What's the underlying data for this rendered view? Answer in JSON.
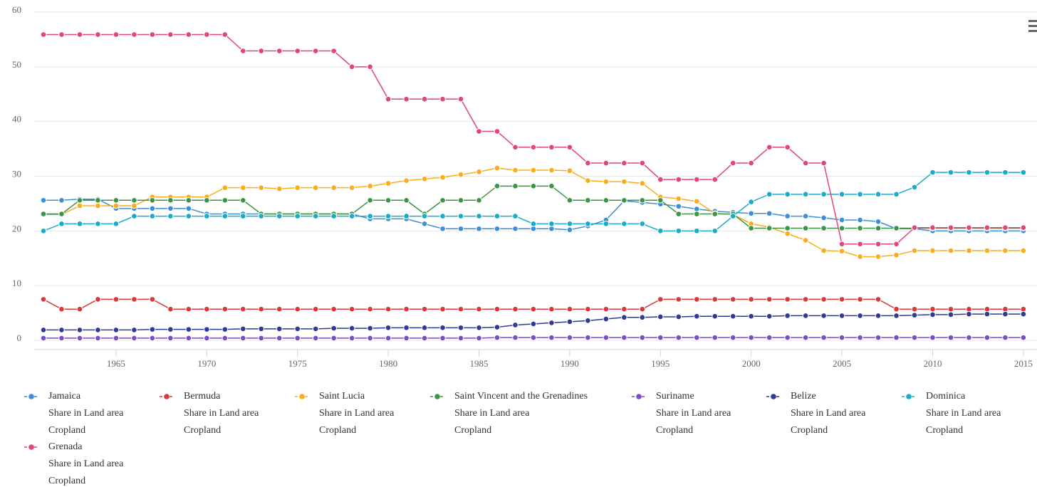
{
  "chart_data": {
    "type": "line",
    "x": [
      1961,
      1962,
      1963,
      1964,
      1965,
      1966,
      1967,
      1968,
      1969,
      1970,
      1971,
      1972,
      1973,
      1974,
      1975,
      1976,
      1977,
      1978,
      1979,
      1980,
      1981,
      1982,
      1983,
      1984,
      1985,
      1986,
      1987,
      1988,
      1989,
      1990,
      1991,
      1992,
      1993,
      1994,
      1995,
      1996,
      1997,
      1998,
      1999,
      2000,
      2001,
      2002,
      2003,
      2004,
      2005,
      2006,
      2007,
      2008,
      2009,
      2010,
      2011,
      2012,
      2013,
      2014,
      2015
    ],
    "xlim": [
      1961,
      2015.75
    ],
    "xticks": [
      1965,
      1970,
      1975,
      1980,
      1985,
      1990,
      1995,
      2000,
      2005,
      2010,
      2015
    ],
    "ylim": [
      0,
      60
    ],
    "yticks": [
      0,
      10,
      20,
      30,
      40,
      50,
      60
    ],
    "grid": true,
    "series": [
      {
        "name": "Jamaica",
        "element": "Share in Land area",
        "item": "Cropland",
        "color": "#3a8fd9",
        "values": [
          25.6,
          25.6,
          25.8,
          25.8,
          24.1,
          24.1,
          24.1,
          24.1,
          24.1,
          23.1,
          23.1,
          23.1,
          23.1,
          23.1,
          23.1,
          23.1,
          23.1,
          23.1,
          22.2,
          22.2,
          22.2,
          21.3,
          20.4,
          20.4,
          20.4,
          20.4,
          20.4,
          20.4,
          20.4,
          20.2,
          20.9,
          22.0,
          25.5,
          25.2,
          24.9,
          24.5,
          24.0,
          23.6,
          23.4,
          23.2,
          23.2,
          22.7,
          22.7,
          22.4,
          22.0,
          22.0,
          21.7,
          20.4,
          20.4,
          20.0,
          20.0,
          20.0,
          20.0,
          20.0,
          20.0
        ]
      },
      {
        "name": "Bermuda",
        "element": "Share in Land area",
        "item": "Cropland",
        "color": "#d9383a",
        "values": [
          7.5,
          5.7,
          5.7,
          7.5,
          7.5,
          7.5,
          7.5,
          5.7,
          5.7,
          5.7,
          5.7,
          5.7,
          5.7,
          5.7,
          5.7,
          5.7,
          5.7,
          5.7,
          5.7,
          5.7,
          5.7,
          5.7,
          5.7,
          5.7,
          5.7,
          5.7,
          5.7,
          5.7,
          5.7,
          5.7,
          5.7,
          5.7,
          5.7,
          5.7,
          7.5,
          7.5,
          7.5,
          7.5,
          7.5,
          7.5,
          7.5,
          7.5,
          7.5,
          7.5,
          7.5,
          7.5,
          7.5,
          5.7,
          5.7,
          5.7,
          5.7,
          5.7,
          5.7,
          5.7,
          5.7
        ]
      },
      {
        "name": "Saint Lucia",
        "element": "Share in Land area",
        "item": "Cropland",
        "color": "#fbab1c",
        "values": [
          23.0,
          23.0,
          24.6,
          24.6,
          24.6,
          24.6,
          26.2,
          26.2,
          26.2,
          26.2,
          27.9,
          27.9,
          27.9,
          27.7,
          27.9,
          27.9,
          27.9,
          27.9,
          28.2,
          28.7,
          29.2,
          29.5,
          29.8,
          30.3,
          30.8,
          31.5,
          31.1,
          31.1,
          31.1,
          31.0,
          29.2,
          29.0,
          29.0,
          28.7,
          26.2,
          25.9,
          25.4,
          23.2,
          23.0,
          21.3,
          20.7,
          19.5,
          18.3,
          16.4,
          16.3,
          15.3,
          15.3,
          15.6,
          16.4,
          16.4,
          16.4,
          16.4,
          16.4,
          16.4,
          16.4
        ]
      },
      {
        "name": "Saint Vincent and the Grenadines",
        "element": "Share in Land area",
        "item": "Cropland",
        "color": "#3c9445",
        "values": [
          23.1,
          23.1,
          25.6,
          25.6,
          25.6,
          25.6,
          25.6,
          25.6,
          25.6,
          25.6,
          25.6,
          25.6,
          23.1,
          23.1,
          23.1,
          23.1,
          23.1,
          23.1,
          25.6,
          25.6,
          25.6,
          23.1,
          25.6,
          25.6,
          25.6,
          28.2,
          28.2,
          28.2,
          28.2,
          25.6,
          25.6,
          25.6,
          25.6,
          25.6,
          25.6,
          23.1,
          23.1,
          23.1,
          23.1,
          20.5,
          20.5,
          20.5,
          20.5,
          20.5,
          20.5,
          20.5,
          20.5,
          20.5,
          20.5,
          20.5,
          20.5,
          20.5,
          20.5,
          20.5,
          20.5
        ]
      },
      {
        "name": "Suriname",
        "element": "Share in Land area",
        "item": "Cropland",
        "color": "#7d4bc4",
        "values": [
          0.4,
          0.4,
          0.4,
          0.4,
          0.4,
          0.4,
          0.4,
          0.4,
          0.4,
          0.4,
          0.4,
          0.4,
          0.4,
          0.4,
          0.4,
          0.4,
          0.4,
          0.4,
          0.4,
          0.4,
          0.4,
          0.4,
          0.4,
          0.4,
          0.4,
          0.5,
          0.5,
          0.5,
          0.5,
          0.5,
          0.5,
          0.5,
          0.5,
          0.5,
          0.5,
          0.5,
          0.5,
          0.5,
          0.5,
          0.5,
          0.5,
          0.5,
          0.5,
          0.5,
          0.5,
          0.5,
          0.5,
          0.5,
          0.5,
          0.5,
          0.5,
          0.5,
          0.5,
          0.5,
          0.5
        ]
      },
      {
        "name": "Belize",
        "element": "Share in Land area",
        "item": "Cropland",
        "color": "#2e3a94",
        "values": [
          1.9,
          1.9,
          1.9,
          1.9,
          1.9,
          1.9,
          2.0,
          2.0,
          2.0,
          2.0,
          2.0,
          2.1,
          2.1,
          2.1,
          2.1,
          2.1,
          2.2,
          2.2,
          2.2,
          2.3,
          2.3,
          2.3,
          2.3,
          2.3,
          2.3,
          2.4,
          2.8,
          3.0,
          3.2,
          3.4,
          3.6,
          3.9,
          4.2,
          4.2,
          4.3,
          4.3,
          4.4,
          4.4,
          4.4,
          4.4,
          4.4,
          4.5,
          4.5,
          4.5,
          4.5,
          4.5,
          4.5,
          4.5,
          4.6,
          4.7,
          4.7,
          4.8,
          4.8,
          4.8,
          4.8
        ]
      },
      {
        "name": "Dominica",
        "element": "Share in Land area",
        "item": "Cropland",
        "color": "#1aabc9",
        "values": [
          20.0,
          21.3,
          21.3,
          21.3,
          21.3,
          22.7,
          22.7,
          22.7,
          22.7,
          22.7,
          22.7,
          22.7,
          22.7,
          22.7,
          22.7,
          22.7,
          22.7,
          22.7,
          22.7,
          22.7,
          22.7,
          22.7,
          22.7,
          22.7,
          22.7,
          22.7,
          22.7,
          21.3,
          21.3,
          21.3,
          21.3,
          21.3,
          21.3,
          21.3,
          20.0,
          20.0,
          20.0,
          20.0,
          22.7,
          25.3,
          26.7,
          26.7,
          26.7,
          26.7,
          26.7,
          26.7,
          26.7,
          26.7,
          28.0,
          30.7,
          30.7,
          30.7,
          30.7,
          30.7,
          30.7
        ]
      },
      {
        "name": "Grenada",
        "element": "Share in Land area",
        "item": "Cropland",
        "color": "#e0457b",
        "values": [
          55.9,
          55.9,
          55.9,
          55.9,
          55.9,
          55.9,
          55.9,
          55.9,
          55.9,
          55.9,
          55.9,
          52.9,
          52.9,
          52.9,
          52.9,
          52.9,
          52.9,
          50.0,
          50.0,
          44.1,
          44.1,
          44.1,
          44.1,
          44.1,
          38.2,
          38.2,
          35.3,
          35.3,
          35.3,
          35.3,
          32.4,
          32.4,
          32.4,
          32.4,
          29.4,
          29.4,
          29.4,
          29.4,
          32.4,
          32.4,
          35.3,
          35.3,
          32.4,
          32.4,
          17.6,
          17.6,
          17.6,
          17.6,
          20.6,
          20.6,
          20.6,
          20.6,
          20.6,
          20.6,
          20.6
        ]
      }
    ]
  }
}
